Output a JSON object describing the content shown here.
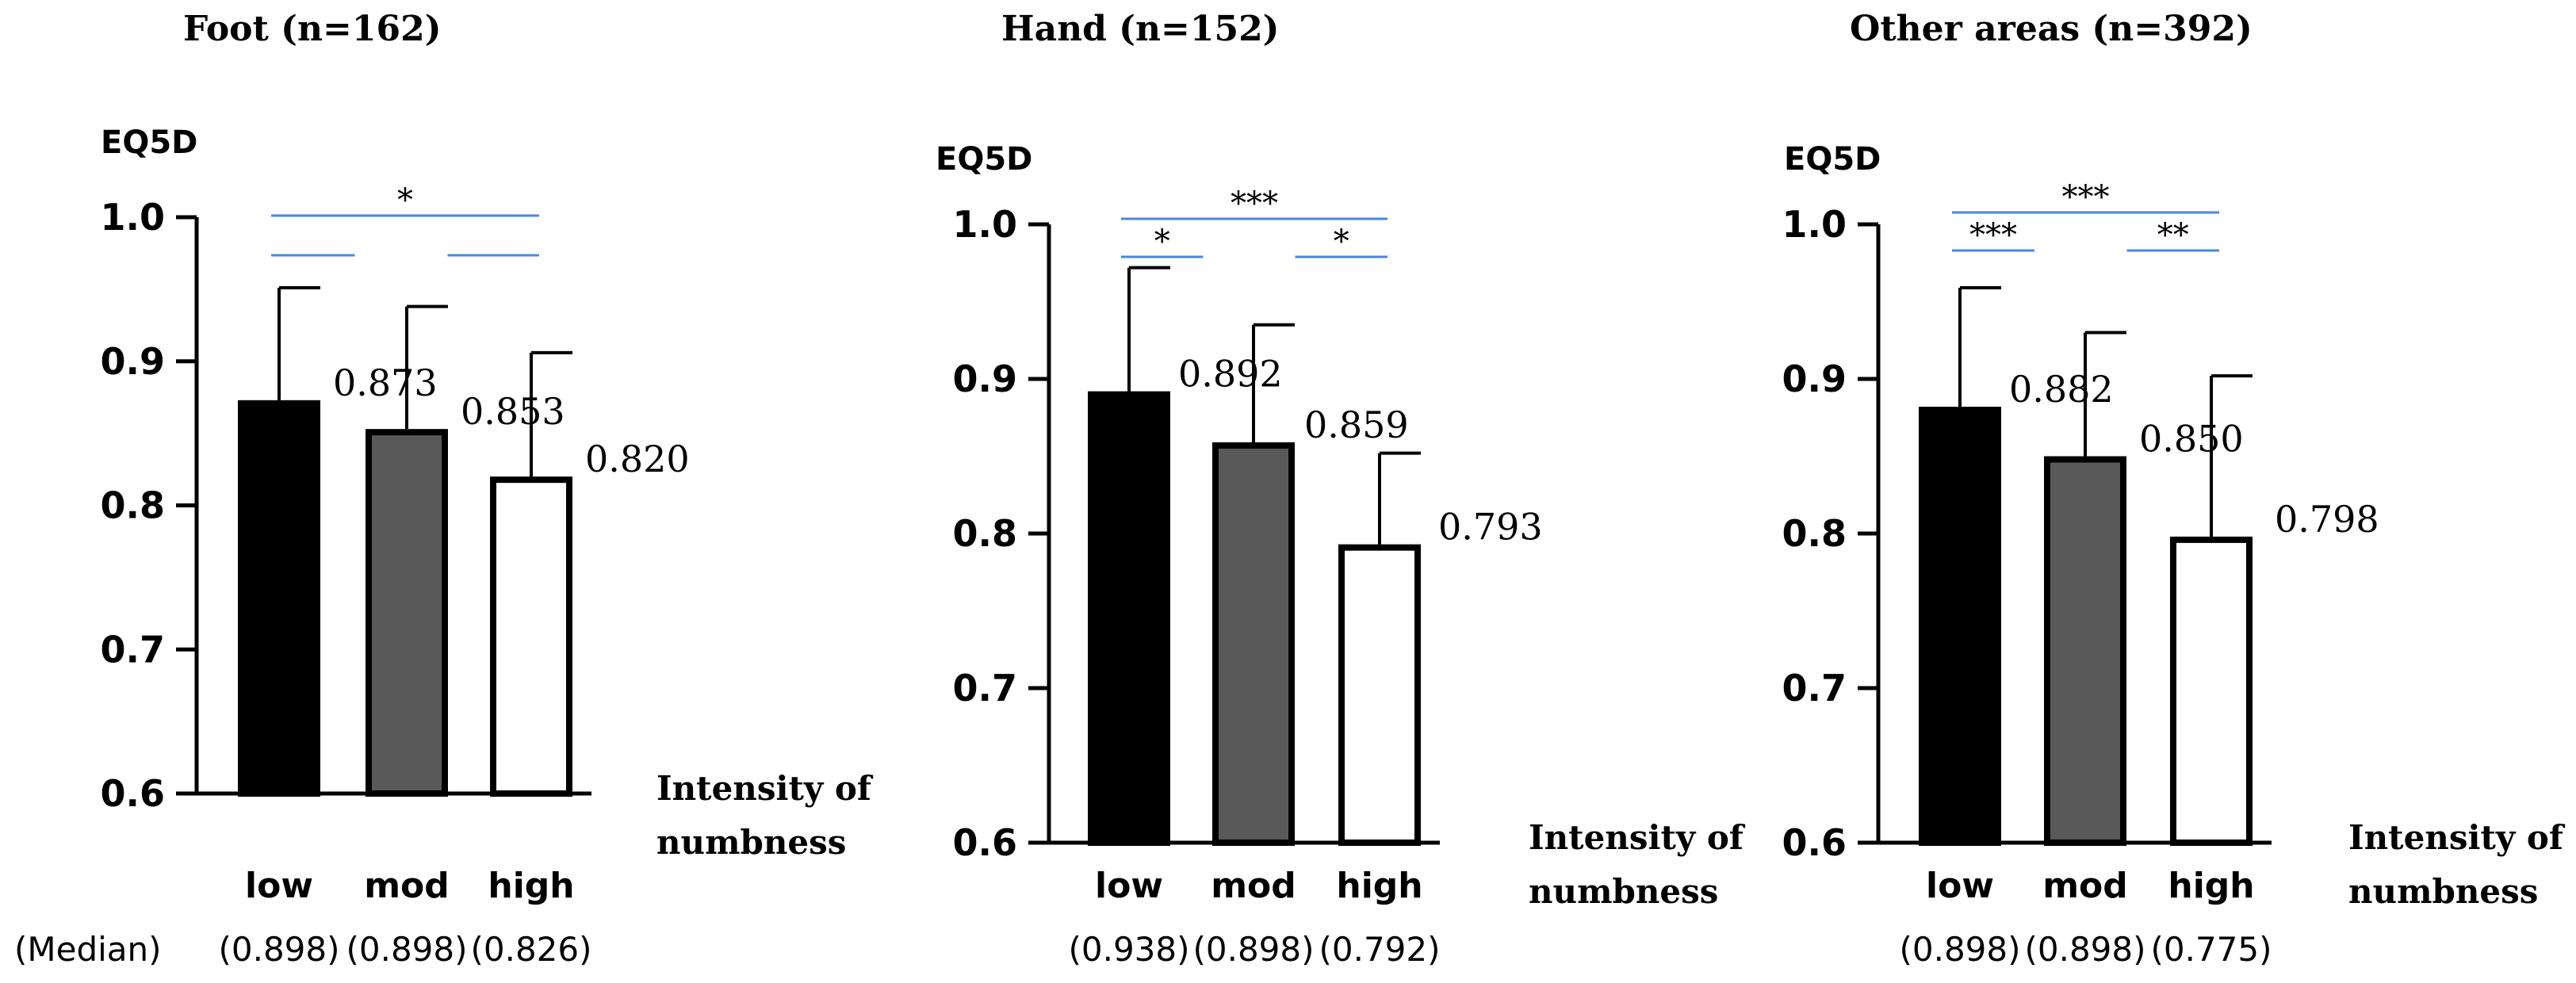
{
  "median_row_label": "(Median)",
  "colors": {
    "sig_line": "#4a86e8",
    "low": "#000000",
    "mod": "#595959",
    "high": "#ffffff"
  },
  "chart_data": [
    {
      "type": "bar",
      "title": "Foot (n=162)",
      "ylabel": "EQ5D",
      "xlabel": [
        "Intensity of",
        "numbness"
      ],
      "ylim": [
        0.6,
        1.0
      ],
      "yticks": [
        "0.6",
        "0.7",
        "0.8",
        "0.9",
        "1.0"
      ],
      "categories": [
        "low",
        "mod",
        "high"
      ],
      "values": [
        0.873,
        0.853,
        0.82
      ],
      "value_labels": [
        "0.873",
        "0.853",
        "0.820"
      ],
      "error_upper": [
        0.951,
        0.938,
        0.906
      ],
      "medians": [
        "(0.898)",
        "(0.898)",
        "(0.826)"
      ],
      "significance": [
        {
          "from": 0,
          "to": 2,
          "label": "*"
        },
        {
          "from": 0,
          "to": 1,
          "label": ""
        },
        {
          "from": 1,
          "to": 2,
          "label": ""
        }
      ]
    },
    {
      "type": "bar",
      "title": "Hand (n=152)",
      "ylabel": "EQ5D",
      "xlabel": [
        "Intensity of",
        "numbness"
      ],
      "ylim": [
        0.6,
        1.0
      ],
      "yticks": [
        "0.6",
        "0.7",
        "0.8",
        "0.9",
        "1.0"
      ],
      "categories": [
        "low",
        "mod",
        "high"
      ],
      "values": [
        0.892,
        0.859,
        0.793
      ],
      "value_labels": [
        "0.892",
        "0.859",
        "0.793"
      ],
      "error_upper": [
        0.972,
        0.935,
        0.852
      ],
      "medians": [
        "(0.938)",
        "(0.898)",
        "(0.792)"
      ],
      "significance": [
        {
          "from": 0,
          "to": 2,
          "label": "***"
        },
        {
          "from": 0,
          "to": 1,
          "label": "*"
        },
        {
          "from": 1,
          "to": 2,
          "label": "*"
        }
      ]
    },
    {
      "type": "bar",
      "title": "Other areas (n=392)",
      "ylabel": "EQ5D",
      "xlabel": [
        "Intensity of",
        "numbness"
      ],
      "ylim": [
        0.6,
        1.0
      ],
      "yticks": [
        "0.6",
        "0.7",
        "0.8",
        "0.9",
        "1.0"
      ],
      "categories": [
        "low",
        "mod",
        "high"
      ],
      "values": [
        0.882,
        0.85,
        0.798
      ],
      "value_labels": [
        "0.882",
        "0.850",
        "0.798"
      ],
      "error_upper": [
        0.959,
        0.93,
        0.902
      ],
      "medians": [
        "(0.898)",
        "(0.898)",
        "(0.775)"
      ],
      "significance": [
        {
          "from": 0,
          "to": 2,
          "label": "***"
        },
        {
          "from": 0,
          "to": 1,
          "label": "***"
        },
        {
          "from": 1,
          "to": 2,
          "label": "**"
        }
      ]
    }
  ]
}
